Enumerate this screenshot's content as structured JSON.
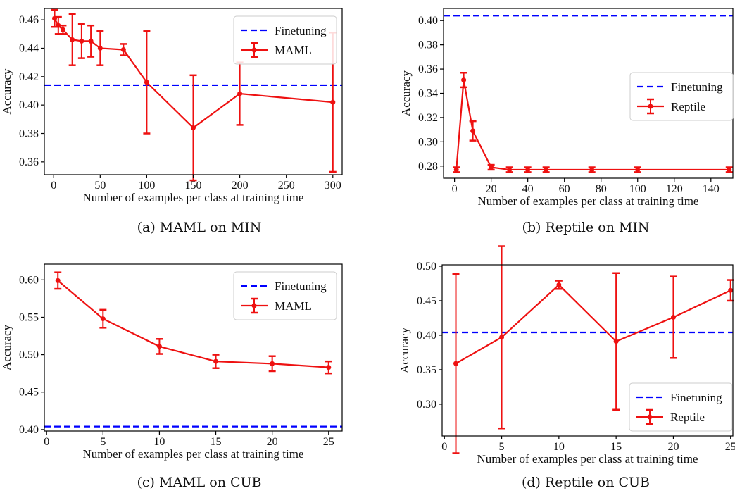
{
  "colors": {
    "finetuning": "#0000ff",
    "method": "#ee1111",
    "axis": "#000000"
  },
  "chart_data": [
    {
      "type": "line",
      "caption": "(a) MAML on MIN",
      "xlabel": "Number of examples per class at training time",
      "ylabel": "Accuracy",
      "xlim": [
        -10,
        310
      ],
      "ylim": [
        0.351,
        0.468
      ],
      "xticks": [
        0,
        50,
        100,
        150,
        200,
        250,
        300
      ],
      "yticks": [
        0.36,
        0.38,
        0.4,
        0.42,
        0.44,
        0.46
      ],
      "ytick_decimals": 2,
      "legend_position": "top-right",
      "baseline": {
        "name": "Finetuning",
        "value": 0.414
      },
      "series": [
        {
          "name": "MAML",
          "x": [
            1,
            5,
            10,
            20,
            30,
            40,
            50,
            75,
            100,
            150,
            200,
            300
          ],
          "y": [
            0.461,
            0.456,
            0.453,
            0.446,
            0.445,
            0.445,
            0.44,
            0.439,
            0.416,
            0.384,
            0.408,
            0.402
          ],
          "err": [
            0.006,
            0.006,
            0.003,
            0.018,
            0.012,
            0.011,
            0.012,
            0.004,
            0.036,
            0.037,
            0.022,
            0.049
          ]
        }
      ]
    },
    {
      "type": "line",
      "caption": "(b) Reptile on MIN",
      "xlabel": "Number of examples per class at training time",
      "ylabel": "Accuracy",
      "xlim": [
        -6,
        152
      ],
      "ylim": [
        0.27,
        0.41
      ],
      "xticks": [
        0,
        20,
        40,
        60,
        80,
        100,
        120,
        140
      ],
      "yticks": [
        0.28,
        0.3,
        0.32,
        0.34,
        0.36,
        0.38,
        0.4
      ],
      "ytick_decimals": 2,
      "legend_position": "center-right",
      "baseline": {
        "name": "Finetuning",
        "value": 0.404
      },
      "series": [
        {
          "name": "Reptile",
          "x": [
            1,
            5,
            10,
            20,
            30,
            40,
            50,
            75,
            100,
            150
          ],
          "y": [
            0.277,
            0.351,
            0.309,
            0.279,
            0.277,
            0.277,
            0.277,
            0.277,
            0.277,
            0.277
          ],
          "err": [
            0.002,
            0.006,
            0.008,
            0.002,
            0.002,
            0.002,
            0.002,
            0.002,
            0.002,
            0.002
          ]
        }
      ]
    },
    {
      "type": "line",
      "caption": "(c) MAML on CUB",
      "xlabel": "Number of examples per class at training time",
      "ylabel": "Accuracy",
      "xlim": [
        -0.2,
        26.2
      ],
      "ylim": [
        0.398,
        0.621
      ],
      "xticks": [
        0,
        5,
        10,
        15,
        20,
        25
      ],
      "yticks": [
        0.4,
        0.45,
        0.5,
        0.55,
        0.6
      ],
      "ytick_decimals": 2,
      "legend_position": "top-right",
      "baseline": {
        "name": "Finetuning",
        "value": 0.404
      },
      "series": [
        {
          "name": "MAML",
          "x": [
            1,
            5,
            10,
            15,
            20,
            25
          ],
          "y": [
            0.599,
            0.548,
            0.511,
            0.491,
            0.488,
            0.483
          ],
          "err": [
            0.011,
            0.012,
            0.01,
            0.009,
            0.01,
            0.008
          ]
        }
      ]
    },
    {
      "type": "line",
      "caption": "(d) Reptile on CUB",
      "xlabel": "Number of examples per class at training time",
      "ylabel": "Accuracy",
      "xlim": [
        -0.2,
        25.2
      ],
      "ylim": [
        0.254,
        0.502
      ],
      "xticks": [
        0,
        5,
        10,
        15,
        20,
        25
      ],
      "yticks": [
        0.3,
        0.35,
        0.4,
        0.45,
        0.5
      ],
      "ytick_decimals": 2,
      "legend_position": "bottom-right",
      "baseline": {
        "name": "Finetuning",
        "value": 0.404
      },
      "series": [
        {
          "name": "Reptile",
          "x": [
            1,
            5,
            10,
            15,
            20,
            25
          ],
          "y": [
            0.359,
            0.397,
            0.473,
            0.391,
            0.426,
            0.465
          ],
          "err": [
            0.13,
            0.132,
            0.006,
            0.099,
            0.059,
            0.015
          ]
        }
      ]
    }
  ]
}
